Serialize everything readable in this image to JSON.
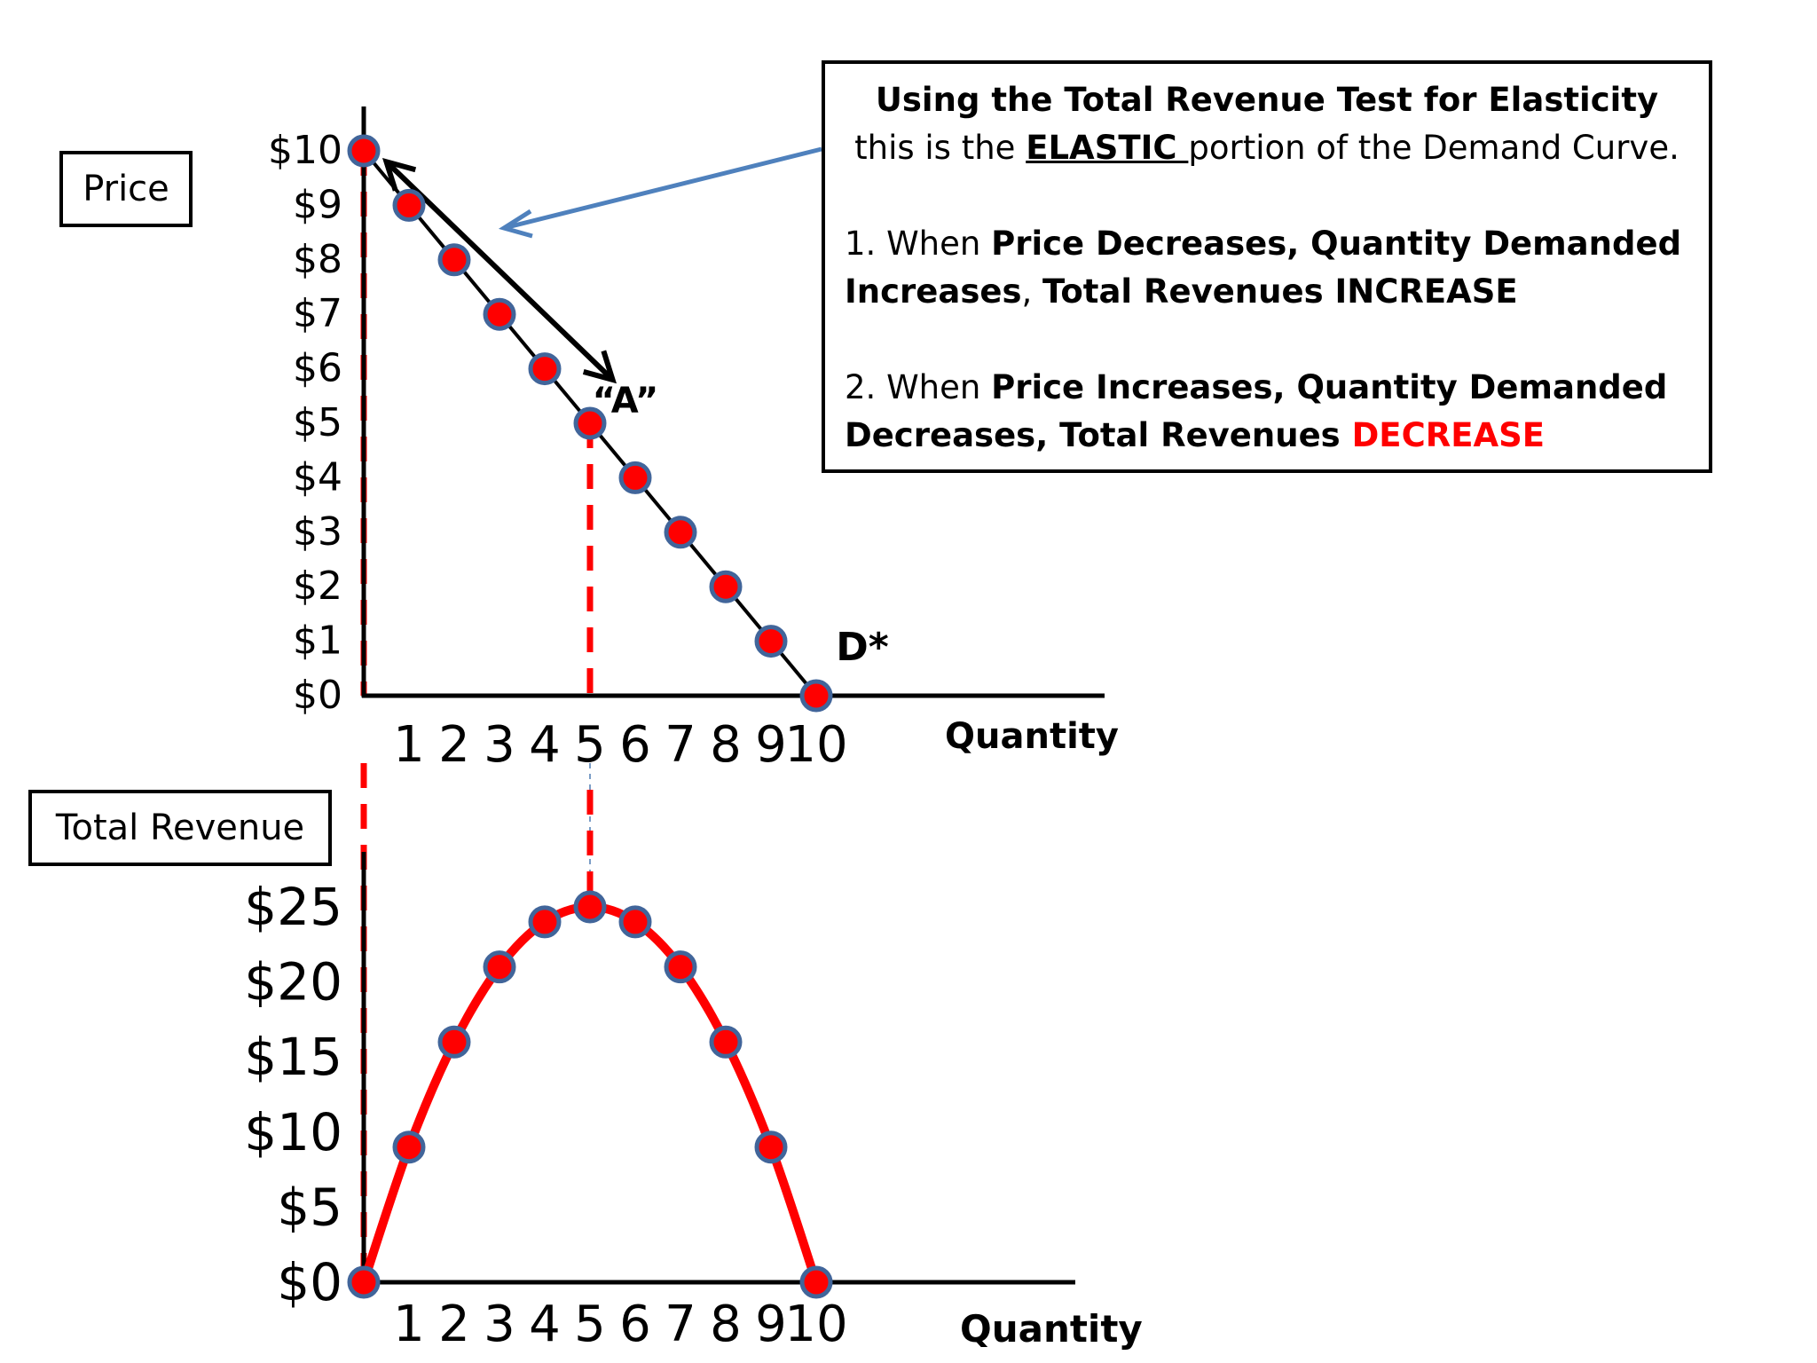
{
  "price_box": {
    "label": "Price"
  },
  "tr_box": {
    "label": "Total Revenue"
  },
  "note": {
    "title": "Using the Total Revenue Test for Elasticity",
    "sub_prefix": "this is the ",
    "sub_emph": "ELASTIC ",
    "sub_suffix": "portion of the Demand Curve.",
    "p1_num": "1. When ",
    "p1_bold1": "Price Decreases, Quantity Demanded",
    "p1_bold2": "Increases",
    "p1_comma": ", ",
    "p1_bold3": "Total Revenues INCREASE",
    "p2_num": "2. When ",
    "p2_bold1": "Price Increases, Quantity Demanded",
    "p2_bold2": "Decreases, Total Revenues ",
    "p2_red": "DECREASE"
  },
  "colors": {
    "point_fill": "#ff0000",
    "point_stroke": "#41659a",
    "curve_red": "#ff0000",
    "guide_red": "#ff0000",
    "axis": "#000000",
    "callout_arrow": "#4f81bd"
  },
  "icons": {
    "arrow": "double-headed-arrow-icon",
    "callout": "callout-arrow-icon"
  },
  "chart_data": [
    {
      "type": "line",
      "title": "",
      "xlabel": "Quantity",
      "ylabel": "Price",
      "x_ticks": [
        "1",
        "2",
        "3",
        "4",
        "5",
        "6",
        "7",
        "8",
        "9",
        "10"
      ],
      "y_ticks": [
        "$0",
        "$1",
        "$2",
        "$3",
        "$4",
        "$5",
        "$6",
        "$7",
        "$8",
        "$9",
        "$10"
      ],
      "xlim": [
        0,
        10
      ],
      "ylim": [
        0,
        10
      ],
      "series": [
        {
          "name": "D*",
          "x": [
            0,
            1,
            2,
            3,
            4,
            5,
            6,
            7,
            8,
            9,
            10
          ],
          "y": [
            10,
            9,
            8,
            7,
            6,
            5,
            4,
            3,
            2,
            1,
            0
          ]
        }
      ],
      "annotations": [
        {
          "text": "“A”",
          "x": 5,
          "y": 5
        },
        {
          "text": "D*",
          "x": 10,
          "y": 0
        }
      ],
      "arrow": {
        "from": [
          0.5,
          9.8
        ],
        "to": [
          5.5,
          5.8
        ],
        "heads": "both"
      },
      "guides_x": [
        0,
        5
      ],
      "grid": false,
      "legend": "none"
    },
    {
      "type": "line",
      "title": "",
      "xlabel": "Quantity",
      "ylabel": "Total Revenue",
      "x_ticks": [
        "1",
        "2",
        "3",
        "4",
        "5",
        "6",
        "7",
        "8",
        "9",
        "10"
      ],
      "y_ticks": [
        "$0",
        "$5",
        "$10",
        "$15",
        "$20",
        "$25"
      ],
      "xlim": [
        0,
        10
      ],
      "ylim": [
        0,
        25
      ],
      "series": [
        {
          "name": "",
          "x": [
            0,
            1,
            2,
            3,
            4,
            5,
            6,
            7,
            8,
            9,
            10
          ],
          "y": [
            0,
            9,
            16,
            21,
            24,
            25,
            24,
            21,
            16,
            9,
            0
          ]
        }
      ],
      "grid": false,
      "legend": "none"
    }
  ]
}
